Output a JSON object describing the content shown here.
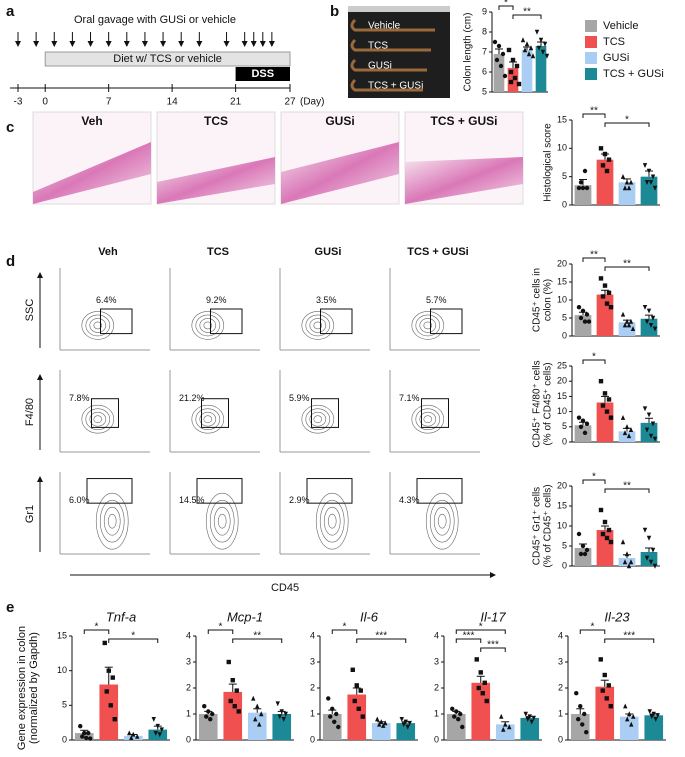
{
  "panel_labels": [
    "a",
    "b",
    "c",
    "d",
    "e"
  ],
  "timeline": {
    "title": "Oral gavage with GUSi or vehicle",
    "diet": "Diet w/ TCS or vehicle",
    "dss": "DSS",
    "unit": "(Day)",
    "xlim": [
      -3,
      27
    ],
    "xticks": [
      -3,
      0,
      7,
      14,
      21,
      27
    ],
    "diet_days": [
      0,
      27
    ],
    "dss_days": [
      21,
      27
    ],
    "gavage_days": [
      -3,
      -1,
      1,
      3,
      5,
      7,
      9,
      11,
      13,
      15,
      17,
      20,
      22,
      23,
      24,
      25
    ]
  },
  "photo_labels": [
    "Vehicle",
    "TCS",
    "GUSi",
    "TCS + GUSi"
  ],
  "groups": [
    {
      "name": "Vehicle",
      "color": "#a6a6a6"
    },
    {
      "name": "TCS",
      "color": "#f0504f"
    },
    {
      "name": "GUSi",
      "color": "#a9cdf3"
    },
    {
      "name": "TCS + GUSi",
      "color": "#1b8a96"
    }
  ],
  "histology_labels": [
    "Veh",
    "TCS",
    "GUSi",
    "TCS + GUSi"
  ],
  "flow": {
    "columns": [
      "Veh",
      "TCS",
      "GUSi",
      "TCS + GUSi"
    ],
    "xlabel": "CD45",
    "rows": [
      {
        "ylabel": "SSC",
        "percents": [
          "6.4%",
          "9.2%",
          "3.5%",
          "5.7%"
        ]
      },
      {
        "ylabel": "F4/80",
        "percents": [
          "7.8%",
          "21.2%",
          "5.9%",
          "7.1%"
        ]
      },
      {
        "ylabel": "Gr1",
        "percents": [
          "6.0%",
          "14.5%",
          "2.9%",
          "4.3%"
        ]
      }
    ]
  },
  "gene_ylabel": [
    "Gene expression in colon",
    "(normalized by Gapdh)"
  ],
  "chart_data": [
    {
      "type": "bar",
      "ylabel": [
        "Colon length (cm)"
      ],
      "ylim": [
        5,
        9
      ],
      "yticks": [
        5,
        6,
        7,
        8,
        9
      ],
      "values": [
        6.9,
        6.2,
        7.1,
        7.3
      ],
      "errors": [
        0.25,
        0.3,
        0.15,
        0.2
      ],
      "points": [
        [
          7.5,
          7.3,
          6.9,
          6.6,
          6.3,
          5.8
        ],
        [
          7.1,
          6.6,
          6.3,
          6.0,
          5.7,
          5.4,
          5.5
        ],
        [
          7.6,
          7.4,
          7.2,
          7.1,
          6.9,
          6.8
        ],
        [
          8.0,
          7.6,
          7.4,
          7.2,
          7.0,
          6.8
        ]
      ],
      "significance": [
        {
          "groups": [
            0,
            1
          ],
          "label": "*"
        },
        {
          "groups": [
            1,
            3
          ],
          "label": "**"
        }
      ]
    },
    {
      "type": "bar",
      "ylabel": [
        "Histological score"
      ],
      "ylim": [
        0,
        15
      ],
      "yticks": [
        0,
        5,
        10,
        15
      ],
      "values": [
        3.5,
        8,
        4,
        5
      ],
      "errors": [
        1,
        1,
        0.6,
        1
      ],
      "points": [
        [
          3,
          3,
          3,
          4,
          6
        ],
        [
          10,
          9,
          8,
          7,
          6
        ],
        [
          5,
          4,
          4,
          3,
          3
        ],
        [
          7,
          6,
          5,
          4,
          4,
          3
        ]
      ],
      "significance": [
        {
          "groups": [
            0,
            1
          ],
          "label": "**"
        },
        {
          "groups": [
            1,
            3
          ],
          "label": "*"
        }
      ]
    },
    {
      "type": "bar",
      "ylabel": [
        "CD45⁺ cells in",
        "colon (%)"
      ],
      "ylim": [
        0,
        20
      ],
      "yticks": [
        0,
        5,
        10,
        15,
        20
      ],
      "values": [
        5.8,
        11.5,
        3.8,
        4.8
      ],
      "errors": [
        0.8,
        1.2,
        0.6,
        1
      ],
      "points": [
        [
          8,
          7,
          6,
          5,
          4,
          4
        ],
        [
          16,
          14,
          12,
          11,
          9,
          8
        ],
        [
          6,
          4,
          4,
          3,
          3,
          2
        ],
        [
          8,
          7,
          5,
          4,
          3,
          2
        ]
      ],
      "significance": [
        {
          "groups": [
            0,
            1
          ],
          "label": "**"
        },
        {
          "groups": [
            1,
            3
          ],
          "label": "**"
        }
      ]
    },
    {
      "type": "bar",
      "ylabel": [
        "CD45⁺ F4/80⁺ cells",
        "(% of CD45⁺ cells)"
      ],
      "ylim": [
        0,
        25
      ],
      "yticks": [
        0,
        5,
        10,
        15,
        20,
        25
      ],
      "values": [
        5.5,
        13,
        3.5,
        6.3
      ],
      "errors": [
        1,
        2,
        1,
        1.5
      ],
      "points": [
        [
          8,
          7,
          6,
          5,
          3
        ],
        [
          20,
          16,
          14,
          12,
          10,
          8
        ],
        [
          8,
          5,
          4,
          3,
          2
        ],
        [
          11,
          9,
          6,
          4,
          2,
          1
        ]
      ],
      "significance": [
        {
          "groups": [
            0,
            1
          ],
          "label": "*"
        }
      ]
    },
    {
      "type": "bar",
      "ylabel": [
        "CD45⁺ Gr1⁺ cells",
        "(% of CD45⁺ cells)"
      ],
      "ylim": [
        0,
        20
      ],
      "yticks": [
        0,
        5,
        10,
        15,
        20
      ],
      "values": [
        4.5,
        9,
        2,
        3.5
      ],
      "errors": [
        1,
        1,
        0.8,
        1
      ],
      "points": [
        [
          8,
          5,
          4,
          3,
          3
        ],
        [
          14,
          11,
          9,
          8,
          7,
          6
        ],
        [
          6,
          3,
          1,
          1,
          0
        ],
        [
          9,
          7,
          4,
          2,
          1,
          0
        ]
      ],
      "significance": [
        {
          "groups": [
            0,
            1
          ],
          "label": "*"
        },
        {
          "groups": [
            1,
            3
          ],
          "label": "**"
        }
      ]
    },
    {
      "type": "bar",
      "title": "Tnf-a",
      "ylim": [
        0,
        15
      ],
      "yticks": [
        0,
        5,
        10,
        15
      ],
      "values": [
        1,
        8,
        0.6,
        1.5
      ],
      "errors": [
        0.4,
        2.5,
        0.2,
        0.5
      ],
      "points": [
        [
          2,
          1,
          1,
          0.5,
          0.3,
          0.2
        ],
        [
          14,
          10,
          9,
          7,
          5,
          3
        ],
        [
          1,
          0.8,
          0.5,
          0.3
        ],
        [
          3,
          2,
          1.5,
          1,
          0.8
        ]
      ],
      "significance": [
        {
          "groups": [
            0,
            1
          ],
          "label": "*"
        },
        {
          "groups": [
            1,
            3
          ],
          "label": "*"
        }
      ]
    },
    {
      "type": "bar",
      "title": "Mcp-1",
      "ylim": [
        0,
        4
      ],
      "yticks": [
        0,
        1,
        2,
        3,
        4
      ],
      "values": [
        1,
        1.85,
        1.05,
        1
      ],
      "errors": [
        0.1,
        0.3,
        0.15,
        0.1
      ],
      "points": [
        [
          1.3,
          1.1,
          1,
          0.9,
          0.8
        ],
        [
          3,
          2.3,
          1.9,
          1.5,
          1.3,
          1.1
        ],
        [
          1.6,
          1.3,
          1,
          0.8,
          0.6
        ],
        [
          1.4,
          1.1,
          1,
          0.9,
          0.8
        ]
      ],
      "significance": [
        {
          "groups": [
            0,
            1
          ],
          "label": "*"
        },
        {
          "groups": [
            1,
            3
          ],
          "label": "**"
        }
      ]
    },
    {
      "type": "bar",
      "title": "Il-6",
      "ylim": [
        0,
        4
      ],
      "yticks": [
        0,
        1,
        2,
        3,
        4
      ],
      "values": [
        1,
        1.75,
        0.65,
        0.65
      ],
      "errors": [
        0.15,
        0.25,
        0.05,
        0.05
      ],
      "points": [
        [
          1.6,
          1.2,
          1,
          0.9,
          0.7,
          0.5
        ],
        [
          2.7,
          2.1,
          1.9,
          1.5,
          1.2,
          0.9
        ],
        [
          0.8,
          0.7,
          0.65,
          0.6,
          0.55
        ],
        [
          0.8,
          0.7,
          0.65,
          0.6,
          0.5
        ]
      ],
      "significance": [
        {
          "groups": [
            0,
            1
          ],
          "label": "*"
        },
        {
          "groups": [
            1,
            3
          ],
          "label": "***"
        }
      ]
    },
    {
      "type": "bar",
      "title": "Il-17",
      "ylim": [
        0,
        4
      ],
      "yticks": [
        0,
        1,
        2,
        3,
        4
      ],
      "values": [
        1,
        2.2,
        0.6,
        0.85
      ],
      "errors": [
        0.1,
        0.25,
        0.1,
        0.05
      ],
      "points": [
        [
          1.2,
          1.1,
          1,
          0.9,
          0.8,
          0.5
        ],
        [
          3.1,
          2.6,
          2.2,
          2,
          1.8,
          1.5
        ],
        [
          0.9,
          0.6,
          0.5,
          0.4
        ],
        [
          1,
          0.9,
          0.85,
          0.8,
          0.7
        ]
      ],
      "significance": [
        {
          "groups": [
            0,
            2
          ],
          "label": "*"
        },
        {
          "groups": [
            0,
            1
          ],
          "label": "***"
        },
        {
          "groups": [
            1,
            2
          ],
          "label": "***"
        }
      ]
    },
    {
      "type": "bar",
      "title": "Il-23",
      "ylim": [
        0,
        4
      ],
      "yticks": [
        0,
        1,
        2,
        3,
        4
      ],
      "values": [
        1,
        2.05,
        0.9,
        0.95
      ],
      "errors": [
        0.2,
        0.25,
        0.1,
        0.05
      ],
      "points": [
        [
          1.8,
          1.3,
          1,
          0.8,
          0.6,
          0.3
        ],
        [
          3.1,
          2.5,
          2.1,
          1.9,
          1.6,
          1.3
        ],
        [
          1.3,
          1,
          0.9,
          0.8,
          0.6
        ],
        [
          1.1,
          1,
          0.95,
          0.9,
          0.8
        ]
      ],
      "significance": [
        {
          "groups": [
            0,
            1
          ],
          "label": "*"
        },
        {
          "groups": [
            1,
            3
          ],
          "label": "***"
        }
      ]
    }
  ]
}
